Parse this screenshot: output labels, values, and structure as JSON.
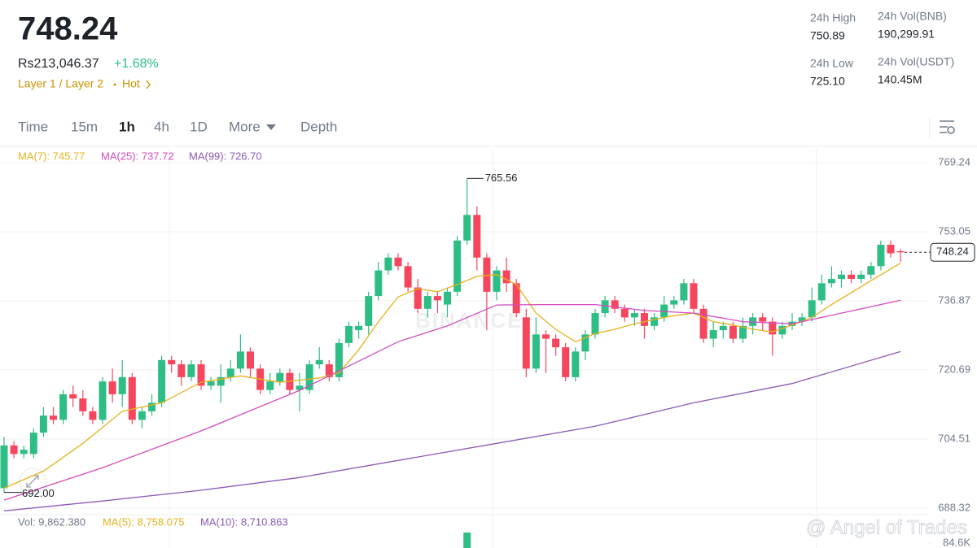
{
  "header": {
    "price": "748.24",
    "local_price": "Rs213,046.37",
    "change": "+1.68%",
    "tag": "Layer 1 / Layer 2",
    "hot": "Hot",
    "stats": [
      {
        "label": "24h High",
        "value": "750.89"
      },
      {
        "label": "24h Vol(BNB)",
        "value": "190,299.91"
      },
      {
        "label": "24h Low",
        "value": "725.10"
      },
      {
        "label": "24h Vol(USDT)",
        "value": "140.45M"
      }
    ]
  },
  "tabs": [
    "Time",
    "15m",
    "1h",
    "4h",
    "1D",
    "More",
    "Depth"
  ],
  "watermarks": [
    "BINANCE",
    "@ Angel of Trades"
  ],
  "chart_data": {
    "type": "candlestick",
    "up_color": "#2ebd85",
    "down_color": "#f6465d",
    "open": [
      693,
      703,
      701,
      701,
      706,
      710,
      709,
      715,
      714,
      711,
      709,
      718,
      715,
      719,
      709,
      711,
      713,
      723,
      722,
      719,
      722,
      717,
      717,
      719,
      721,
      725,
      721,
      716,
      718,
      720,
      716,
      716,
      722,
      722,
      719,
      727,
      730,
      731,
      738,
      744,
      747,
      745,
      740,
      735,
      738,
      736,
      739,
      751,
      757,
      747,
      739,
      744,
      741,
      733,
      721,
      729,
      728,
      726,
      719,
      725,
      729,
      734,
      737,
      735,
      733,
      734,
      731,
      733,
      736,
      737,
      741,
      735,
      728,
      730,
      731,
      728,
      731,
      733,
      732,
      729,
      731,
      732,
      733,
      737,
      741,
      742,
      743,
      742,
      743,
      745,
      750,
      748.5
    ],
    "high": [
      705,
      704,
      703,
      707,
      712,
      712,
      716,
      717,
      716,
      712,
      719,
      721,
      723,
      720,
      712,
      715,
      724,
      724,
      723,
      723,
      723,
      719,
      722,
      723,
      729,
      726,
      722,
      720,
      721,
      721,
      720,
      723,
      726,
      723,
      728,
      732,
      732,
      739,
      746,
      748,
      748,
      746,
      742,
      739,
      739,
      740,
      752,
      765.56,
      759,
      748,
      745,
      747,
      742,
      735,
      733,
      730,
      729,
      727,
      726,
      730,
      735,
      738,
      738,
      736,
      735,
      735,
      734,
      738,
      738,
      742,
      742,
      736,
      732,
      732,
      732,
      733,
      734,
      734,
      733,
      732,
      734,
      734,
      740,
      743,
      745,
      744,
      744,
      744,
      746,
      751,
      751,
      749
    ],
    "low": [
      692,
      700,
      700,
      700,
      705,
      708,
      708,
      712,
      710,
      708,
      708,
      713,
      712,
      708,
      707,
      710,
      712,
      720,
      717,
      718,
      716,
      716,
      713,
      718,
      720,
      719,
      715,
      715,
      717,
      715,
      711,
      715,
      721,
      718,
      718,
      726,
      728,
      729,
      737,
      743,
      744,
      739,
      734,
      733,
      734,
      733,
      738,
      750,
      744,
      730,
      737,
      739,
      733,
      719,
      720,
      720,
      724,
      718,
      718,
      723,
      728,
      733,
      734,
      732,
      731,
      728,
      730,
      732,
      735,
      736,
      734,
      727,
      726,
      728,
      727,
      727,
      729,
      730,
      724,
      728,
      730,
      731,
      732,
      736,
      740,
      740,
      741,
      741,
      742,
      744,
      747,
      746
    ],
    "close": [
      703,
      701,
      702,
      706,
      710,
      709,
      715,
      714,
      711,
      709,
      718,
      715,
      719,
      709,
      711,
      713,
      723,
      722,
      719,
      722,
      717,
      718,
      719,
      721,
      725,
      721,
      716,
      718,
      720,
      716,
      717,
      722,
      723,
      719,
      727,
      731,
      731,
      738,
      744,
      747,
      745,
      740,
      735,
      738,
      737,
      739,
      751,
      757,
      747,
      739,
      744,
      741,
      734,
      721,
      729,
      728,
      726,
      719,
      725,
      729,
      734,
      737,
      735,
      733,
      734,
      731,
      733,
      736,
      737,
      741,
      735,
      728,
      730,
      731,
      728,
      731,
      733,
      732,
      729,
      731,
      732,
      733,
      737,
      741,
      742,
      743,
      742,
      743,
      745,
      750,
      748,
      748.24
    ],
    "ylim": [
      688.32,
      769.24
    ],
    "yticks": [
      688.32,
      704.51,
      720.69,
      736.87,
      753.05,
      769.24
    ],
    "grid": true,
    "high_mark": {
      "index": 47,
      "value": 765.56
    },
    "low_mark": {
      "index": 0,
      "value": 692,
      "label": "692.00"
    },
    "last_price": 748.24,
    "series": [
      {
        "name": "MA(7): 745.77",
        "color": "#e5b21c",
        "x": [
          0,
          4,
          8,
          12,
          16,
          20,
          24,
          28,
          32,
          34,
          36,
          38,
          40,
          42,
          44,
          46,
          48,
          50,
          52,
          54,
          56,
          58,
          60,
          62,
          64,
          66,
          68,
          70,
          72,
          74,
          76,
          78,
          80,
          82,
          84,
          86,
          88,
          91
        ],
        "values": [
          693,
          697,
          703.5,
          711,
          713,
          717.8,
          719.3,
          717.8,
          718.8,
          720,
          725.4,
          732,
          737.8,
          739.7,
          739,
          740.7,
          742.6,
          743,
          740.7,
          734,
          730.2,
          727.3,
          729.2,
          730.2,
          731.5,
          732.5,
          733.4,
          734,
          732,
          731.2,
          730.2,
          729.6,
          731.2,
          733,
          736,
          738.8,
          741.6,
          745.7
        ]
      },
      {
        "name": "MA(25): 737.72",
        "color": "#d54bbd",
        "x": [
          0,
          10,
          20,
          30,
          40,
          45,
          50,
          55,
          60,
          65,
          70,
          75,
          80,
          85,
          91
        ],
        "values": [
          690.2,
          697.8,
          706.4,
          715.9,
          727.3,
          731,
          735.9,
          736,
          736,
          734.6,
          734,
          732,
          731.5,
          734,
          737
        ]
      },
      {
        "name": "MA(99): 726.70",
        "color": "#8b5bb5",
        "x": [
          0,
          10,
          20,
          30,
          40,
          50,
          60,
          70,
          80,
          91
        ],
        "values": [
          687.7,
          690,
          692.5,
          695.5,
          699.5,
          703.5,
          707.5,
          713,
          717.5,
          725
        ]
      }
    ],
    "volume": {
      "legend": [
        "Vol: 9,862.380",
        "MA(5): 8,758.075",
        "MA(10): 8,710.863"
      ],
      "legend_colors": [
        "#707a8a",
        "#e5b21c",
        "#8b5bb5"
      ],
      "ylim": [
        0,
        100000
      ],
      "yticks": [
        {
          "value": 84600,
          "label": "84.6K"
        }
      ],
      "x": [
        47
      ],
      "values": [
        98000
      ]
    }
  }
}
